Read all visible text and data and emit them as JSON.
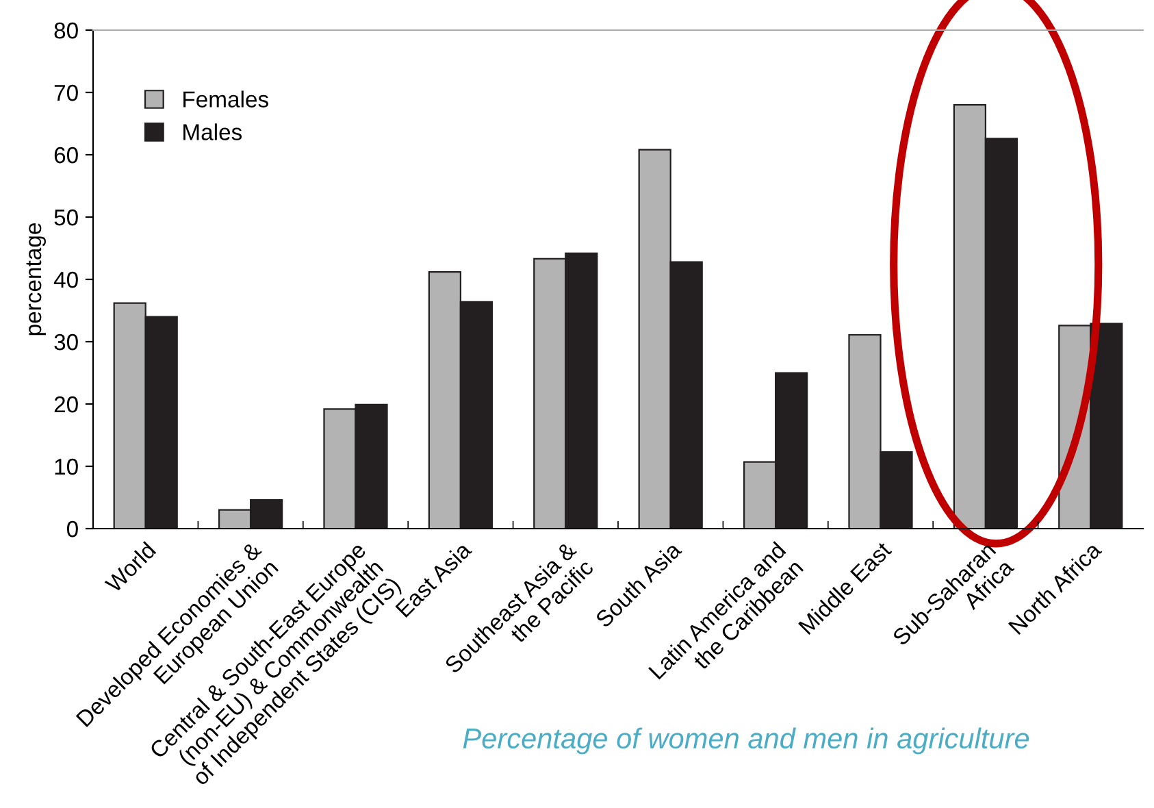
{
  "chart_data": {
    "type": "bar",
    "ylabel": "percentage",
    "categories": [
      "World",
      "Developed Economies &\nEuropean Union",
      "Central & South-East Europe\n(non-EU) & Commonwealth\nof Independent States (CIS)",
      "East Asia",
      "Southeast Asia &\nthe Pacific",
      "South Asia",
      "Latin America and\nthe Caribbean",
      "Middle East",
      "Sub-Saharan\nAfrica",
      "North Africa"
    ],
    "series": [
      {
        "name": "Females",
        "color": "#b3b3b3",
        "values": [
          36.2,
          3.0,
          19.2,
          41.2,
          43.3,
          60.8,
          10.7,
          31.1,
          68.0,
          32.6
        ]
      },
      {
        "name": "Males",
        "color": "#231f20",
        "values": [
          34.0,
          4.6,
          19.9,
          36.4,
          44.2,
          42.8,
          25.0,
          12.3,
          62.6,
          32.9
        ]
      }
    ],
    "ylim": [
      0,
      80
    ],
    "yticks": [
      0,
      10,
      20,
      30,
      40,
      50,
      60,
      70,
      80
    ],
    "grid": false,
    "legend": "top left",
    "annotations": [
      "Percentage of women and men in agriculture"
    ]
  }
}
